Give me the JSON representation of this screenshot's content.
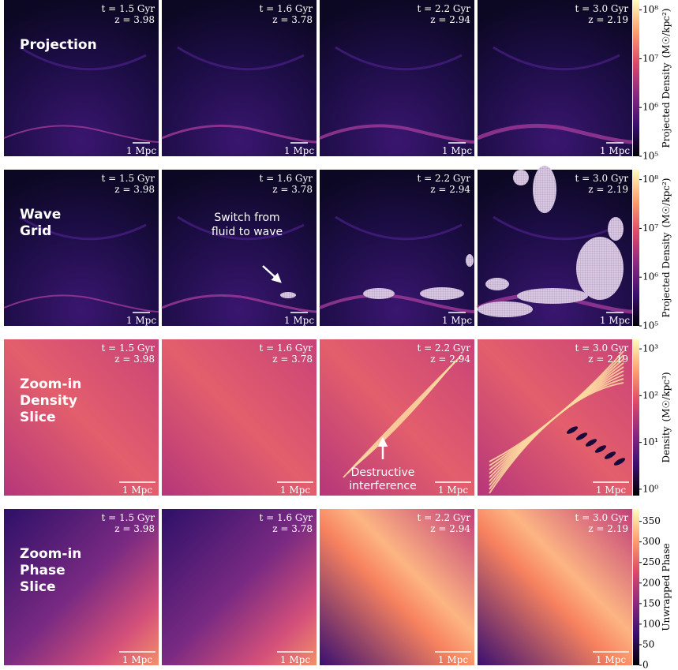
{
  "rows": [
    {
      "label": [
        "Projection"
      ],
      "panels": [
        {
          "t": "t = 1.5 Gyr",
          "z": "z = 3.98",
          "scale": "1 Mpc"
        },
        {
          "t": "t = 1.6 Gyr",
          "z": "z = 3.78",
          "scale": "1 Mpc"
        },
        {
          "t": "t = 2.2 Gyr",
          "z": "z = 2.94",
          "scale": "1 Mpc"
        },
        {
          "t": "t = 3.0 Gyr",
          "z": "z = 2.19",
          "scale": "1 Mpc"
        }
      ],
      "colorbar": {
        "label": "Projected Density",
        "unit": "(M☉/kpc²)",
        "log": true,
        "lim": [
          100000,
          160000000
        ],
        "ticks": [
          {
            "value": 100000,
            "label": "10⁵"
          },
          {
            "value": 1000000,
            "label": "10⁶"
          },
          {
            "value": 10000000,
            "label": "10⁷"
          },
          {
            "value": 100000000,
            "label": "10⁸"
          }
        ]
      }
    },
    {
      "label": [
        "Wave",
        "Grid"
      ],
      "panels": [
        {
          "t": "t = 1.5 Gyr",
          "z": "z = 3.98",
          "scale": "1 Mpc"
        },
        {
          "t": "t = 1.6 Gyr",
          "z": "z = 3.78",
          "scale": "1 Mpc"
        },
        {
          "t": "t = 2.2 Gyr",
          "z": "z = 2.94",
          "scale": "1 Mpc"
        },
        {
          "t": "t = 3.0 Gyr",
          "z": "z = 2.19",
          "scale": "1 Mpc"
        }
      ],
      "colorbar": {
        "label": "Projected Density",
        "unit": "(M☉/kpc²)",
        "log": true,
        "lim": [
          100000,
          160000000
        ],
        "ticks": [
          {
            "value": 100000,
            "label": "10⁵"
          },
          {
            "value": 1000000,
            "label": "10⁶"
          },
          {
            "value": 10000000,
            "label": "10⁷"
          },
          {
            "value": 100000000,
            "label": "10⁸"
          }
        ]
      }
    },
    {
      "label": [
        "Zoom-in",
        "Density",
        "Slice"
      ],
      "panels": [
        {
          "t": "t = 1.5 Gyr",
          "z": "z = 3.98",
          "scale": "1 Mpc"
        },
        {
          "t": "t = 1.6 Gyr",
          "z": "z = 3.78",
          "scale": "1 Mpc"
        },
        {
          "t": "t = 2.2 Gyr",
          "z": "z = 2.94",
          "scale": "1 Mpc"
        },
        {
          "t": "t = 3.0 Gyr",
          "z": "z = 2.19",
          "scale": "1 Mpc"
        }
      ],
      "colorbar": {
        "label": "Density",
        "unit": "(M☉/kpc³)",
        "log": true,
        "lim": [
          0.73,
          1600
        ],
        "ticks": [
          {
            "value": 1,
            "label": "10⁰"
          },
          {
            "value": 10,
            "label": "10¹"
          },
          {
            "value": 100,
            "label": "10²"
          },
          {
            "value": 1000,
            "label": "10³"
          }
        ]
      }
    },
    {
      "label": [
        "Zoom-in",
        "Phase",
        "Slice"
      ],
      "panels": [
        {
          "t": "t = 1.5 Gyr",
          "z": "z = 3.98",
          "scale": "1 Mpc"
        },
        {
          "t": "t = 1.6 Gyr",
          "z": "z = 3.78",
          "scale": "1 Mpc"
        },
        {
          "t": "t = 2.2 Gyr",
          "z": "z = 2.94",
          "scale": "1 Mpc"
        },
        {
          "t": "t = 3.0 Gyr",
          "z": "z = 2.19",
          "scale": "1 Mpc"
        }
      ],
      "colorbar": {
        "label": "Unwrapped Phase",
        "log": false,
        "lim": [
          0,
          380
        ],
        "ticks": [
          0,
          50,
          100,
          150,
          200,
          250,
          300,
          350
        ]
      }
    }
  ],
  "annotations": [
    {
      "lines": [
        "Switch from",
        "fluid to wave"
      ]
    },
    {
      "lines": [
        "Destructive",
        "interference"
      ]
    }
  ]
}
